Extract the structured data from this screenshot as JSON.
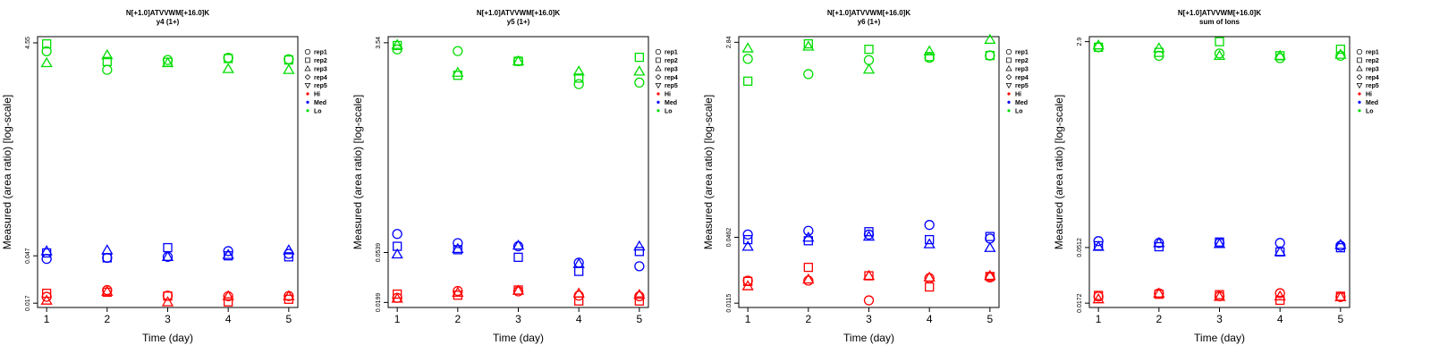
{
  "colors": {
    "Hi": "#ff0000",
    "Med": "#0000ff",
    "Lo": "#00dd00",
    "axis": "#000000"
  },
  "chart_data": [
    {
      "type": "scatter",
      "title": "N[+1.0]ATVVWM[+16.0]K",
      "subtitle": "y4 (1+)",
      "xlabel": "Time (day)",
      "ylabel": "Measured (area ratio) [log-scale]",
      "scale": "log",
      "xlim": [
        0.85,
        5.15
      ],
      "ylim": [
        0.0155,
        5.2
      ],
      "x_ticks": [
        "1",
        "2",
        "3",
        "4",
        "5"
      ],
      "y_ticks": [
        {
          "value": 0.017,
          "label": "0.017"
        },
        {
          "value": 0.047,
          "label": "0.047"
        },
        {
          "value": 4.55,
          "label": "4.55"
        }
      ],
      "legend": [
        "rep1",
        "rep2",
        "rep3",
        "rep4",
        "rep5",
        "Hi",
        "Med",
        "Lo"
      ],
      "legend_placement": "right",
      "points": {
        "Hi": {
          "rep1": [
            [
              1,
              0.0195
            ],
            [
              2,
              0.0225
            ],
            [
              3,
              0.02
            ],
            [
              4,
              0.0197
            ],
            [
              5,
              0.0198
            ]
          ],
          "rep2": [
            [
              1,
              0.021
            ],
            [
              2,
              0.0215
            ],
            [
              3,
              0.0198
            ],
            [
              4,
              0.0175
            ],
            [
              5,
              0.0185
            ]
          ],
          "rep3": [
            [
              1,
              0.018
            ],
            [
              2,
              0.0218
            ],
            [
              3,
              0.0174
            ],
            [
              4,
              0.0198
            ],
            [
              5,
              0.0198
            ]
          ]
        },
        "Med": {
          "rep1": [
            [
              1,
              0.044
            ],
            [
              2,
              0.045
            ],
            [
              3,
              0.046
            ],
            [
              4,
              0.052
            ],
            [
              5,
              0.049
            ]
          ],
          "rep2": [
            [
              1,
              0.05
            ],
            [
              2,
              0.045
            ],
            [
              3,
              0.056
            ],
            [
              4,
              0.047
            ],
            [
              5,
              0.046
            ]
          ],
          "rep3": [
            [
              1,
              0.052
            ],
            [
              2,
              0.053
            ],
            [
              3,
              0.046
            ],
            [
              4,
              0.048
            ],
            [
              5,
              0.053
            ]
          ]
        },
        "Lo": {
          "rep1": [
            [
              1,
              3.8
            ],
            [
              2,
              2.55
            ],
            [
              3,
              3.15
            ],
            [
              4,
              3.3
            ],
            [
              5,
              3.2
            ]
          ],
          "rep2": [
            [
              1,
              4.45
            ],
            [
              2,
              3.05
            ],
            [
              3,
              3.0
            ],
            [
              4,
              3.25
            ],
            [
              5,
              3.15
            ]
          ],
          "rep3": [
            [
              1,
              2.95
            ],
            [
              2,
              3.5
            ],
            [
              3,
              2.95
            ],
            [
              4,
              2.6
            ],
            [
              5,
              2.55
            ]
          ]
        }
      }
    },
    {
      "type": "scatter",
      "title": "N[+1.0]ATVVWM[+16.0]K",
      "subtitle": "y5 (1+)",
      "xlabel": "Time (day)",
      "ylabel": "Measured (area ratio) [log-scale]",
      "scale": "log",
      "xlim": [
        0.85,
        5.15
      ],
      "ylim": [
        0.018,
        4.0
      ],
      "x_ticks": [
        "1",
        "2",
        "3",
        "4",
        "5"
      ],
      "y_ticks": [
        {
          "value": 0.0199,
          "label": "0.0199"
        },
        {
          "value": 0.0539,
          "label": "0.0539"
        },
        {
          "value": 3.54,
          "label": "3.54"
        }
      ],
      "legend": [
        "rep1",
        "rep2",
        "rep3",
        "rep4",
        "rep5",
        "Hi",
        "Med",
        "Lo"
      ],
      "legend_placement": "right",
      "points": {
        "Hi": {
          "rep1": [
            [
              1,
              0.0218
            ],
            [
              2,
              0.025
            ],
            [
              3,
              0.0248
            ],
            [
              4,
              0.0228
            ],
            [
              5,
              0.0225
            ]
          ],
          "rep2": [
            [
              1,
              0.0235
            ],
            [
              2,
              0.023
            ],
            [
              3,
              0.0255
            ],
            [
              4,
              0.0205
            ],
            [
              5,
              0.0205
            ]
          ],
          "rep3": [
            [
              1,
              0.0215
            ],
            [
              2,
              0.0242
            ],
            [
              3,
              0.0252
            ],
            [
              4,
              0.0238
            ],
            [
              5,
              0.0232
            ]
          ]
        },
        "Med": {
          "rep1": [
            [
              1,
              0.078
            ],
            [
              2,
              0.065
            ],
            [
              3,
              0.061
            ],
            [
              4,
              0.044
            ],
            [
              5,
              0.041
            ]
          ],
          "rep2": [
            [
              1,
              0.061
            ],
            [
              2,
              0.057
            ],
            [
              3,
              0.049
            ],
            [
              4,
              0.037
            ],
            [
              5,
              0.055
            ]
          ],
          "rep3": [
            [
              1,
              0.052
            ],
            [
              2,
              0.058
            ],
            [
              3,
              0.062
            ],
            [
              4,
              0.043
            ],
            [
              5,
              0.061
            ]
          ]
        },
        "Lo": {
          "rep1": [
            [
              1,
              3.1
            ],
            [
              2,
              3.0
            ],
            [
              3,
              2.45
            ],
            [
              4,
              1.55
            ],
            [
              5,
              1.6
            ]
          ],
          "rep2": [
            [
              1,
              3.35
            ],
            [
              2,
              1.85
            ],
            [
              3,
              2.45
            ],
            [
              4,
              1.75
            ],
            [
              5,
              2.65
            ]
          ],
          "rep3": [
            [
              1,
              3.4
            ],
            [
              2,
              1.95
            ],
            [
              3,
              2.45
            ],
            [
              4,
              2.0
            ],
            [
              5,
              2.0
            ]
          ]
        }
      }
    },
    {
      "type": "scatter",
      "title": "N[+1.0]ATVVWM[+16.0]K",
      "subtitle": "y6 (1+)",
      "xlabel": "Time (day)",
      "ylabel": "Measured (area ratio) [log-scale]",
      "scale": "log",
      "xlim": [
        0.85,
        5.15
      ],
      "ylim": [
        0.0105,
        3.2
      ],
      "x_ticks": [
        "1",
        "2",
        "3",
        "4",
        "5"
      ],
      "y_ticks": [
        {
          "value": 0.0115,
          "label": "0.0115"
        },
        {
          "value": 0.0462,
          "label": "0.0462"
        },
        {
          "value": 2.84,
          "label": "2.84"
        }
      ],
      "legend": [
        "rep1",
        "rep2",
        "rep3",
        "rep4",
        "rep5",
        "Hi",
        "Med",
        "Lo"
      ],
      "legend_placement": "right",
      "points": {
        "Hi": {
          "rep1": [
            [
              1,
              0.0185
            ],
            [
              2,
              0.0185
            ],
            [
              3,
              0.0122
            ],
            [
              4,
              0.0195
            ],
            [
              5,
              0.0198
            ]
          ],
          "rep2": [
            [
              1,
              0.0182
            ],
            [
              2,
              0.0245
            ],
            [
              3,
              0.0205
            ],
            [
              4,
              0.0162
            ],
            [
              5,
              0.0202
            ]
          ],
          "rep3": [
            [
              1,
              0.0165
            ],
            [
              2,
              0.019
            ],
            [
              3,
              0.0205
            ],
            [
              4,
              0.0198
            ],
            [
              5,
              0.0205
            ]
          ]
        },
        "Med": {
          "rep1": [
            [
              1,
              0.049
            ],
            [
              2,
              0.053
            ],
            [
              3,
              0.049
            ],
            [
              4,
              0.06
            ],
            [
              5,
              0.045
            ]
          ],
          "rep2": [
            [
              1,
              0.044
            ],
            [
              2,
              0.043
            ],
            [
              3,
              0.052
            ],
            [
              4,
              0.044
            ],
            [
              5,
              0.047
            ]
          ],
          "rep3": [
            [
              1,
              0.038
            ],
            [
              2,
              0.046
            ],
            [
              3,
              0.047
            ],
            [
              4,
              0.04
            ],
            [
              5,
              0.037
            ]
          ]
        },
        "Lo": {
          "rep1": [
            [
              1,
              2.0
            ],
            [
              2,
              1.45
            ],
            [
              3,
              1.95
            ],
            [
              4,
              2.05
            ],
            [
              5,
              2.15
            ]
          ],
          "rep2": [
            [
              1,
              1.25
            ],
            [
              2,
              2.75
            ],
            [
              3,
              2.45
            ],
            [
              4,
              2.1
            ],
            [
              5,
              2.15
            ]
          ],
          "rep3": [
            [
              1,
              2.5
            ],
            [
              2,
              2.6
            ],
            [
              3,
              1.6
            ],
            [
              4,
              2.35
            ],
            [
              5,
              3.0
            ]
          ]
        }
      }
    },
    {
      "type": "scatter",
      "title": "N[+1.0]ATVVWM[+16.0]K",
      "subtitle": "sum of Ions",
      "xlabel": "Time (day)",
      "ylabel": "Measured (area ratio) [log-scale]",
      "scale": "log",
      "xlim": [
        0.85,
        5.15
      ],
      "ylim": [
        0.0158,
        3.2
      ],
      "x_ticks": [
        "1",
        "2",
        "3",
        "4",
        "5"
      ],
      "y_ticks": [
        {
          "value": 0.0172,
          "label": "0.0172"
        },
        {
          "value": 0.0512,
          "label": "0.0512"
        },
        {
          "value": 2.9,
          "label": "2.9"
        }
      ],
      "legend": [
        "rep1",
        "rep2",
        "rep3",
        "rep4",
        "rep5",
        "Hi",
        "Med",
        "Lo"
      ],
      "legend_placement": "right",
      "points": {
        "Hi": {
          "rep1": [
            [
              1,
              0.0196
            ],
            [
              2,
              0.0208
            ],
            [
              3,
              0.0197
            ],
            [
              4,
              0.0209
            ],
            [
              5,
              0.0194
            ]
          ],
          "rep2": [
            [
              1,
              0.02
            ],
            [
              2,
              0.0205
            ],
            [
              3,
              0.0203
            ],
            [
              4,
              0.0182
            ],
            [
              5,
              0.0197
            ]
          ],
          "rep3": [
            [
              1,
              0.0186
            ],
            [
              2,
              0.0208
            ],
            [
              3,
              0.0195
            ],
            [
              4,
              0.0197
            ],
            [
              5,
              0.0194
            ]
          ]
        },
        "Med": {
          "rep1": [
            [
              1,
              0.058
            ],
            [
              2,
              0.056
            ],
            [
              3,
              0.056
            ],
            [
              4,
              0.056
            ],
            [
              5,
              0.053
            ]
          ],
          "rep2": [
            [
              1,
              0.053
            ],
            [
              2,
              0.052
            ],
            [
              3,
              0.057
            ],
            [
              4,
              0.047
            ],
            [
              5,
              0.051
            ]
          ],
          "rep3": [
            [
              1,
              0.052
            ],
            [
              2,
              0.056
            ],
            [
              3,
              0.055
            ],
            [
              4,
              0.047
            ],
            [
              5,
              0.054
            ]
          ]
        },
        "Lo": {
          "rep1": [
            [
              1,
              2.6
            ],
            [
              2,
              2.2
            ],
            [
              3,
              2.3
            ],
            [
              4,
              2.1
            ],
            [
              5,
              2.2
            ]
          ],
          "rep2": [
            [
              1,
              2.6
            ],
            [
              2,
              2.35
            ],
            [
              3,
              2.9
            ],
            [
              4,
              2.2
            ],
            [
              5,
              2.5
            ]
          ],
          "rep3": [
            [
              1,
              2.7
            ],
            [
              2,
              2.55
            ],
            [
              3,
              2.2
            ],
            [
              4,
              2.2
            ],
            [
              5,
              2.25
            ]
          ]
        }
      }
    }
  ]
}
